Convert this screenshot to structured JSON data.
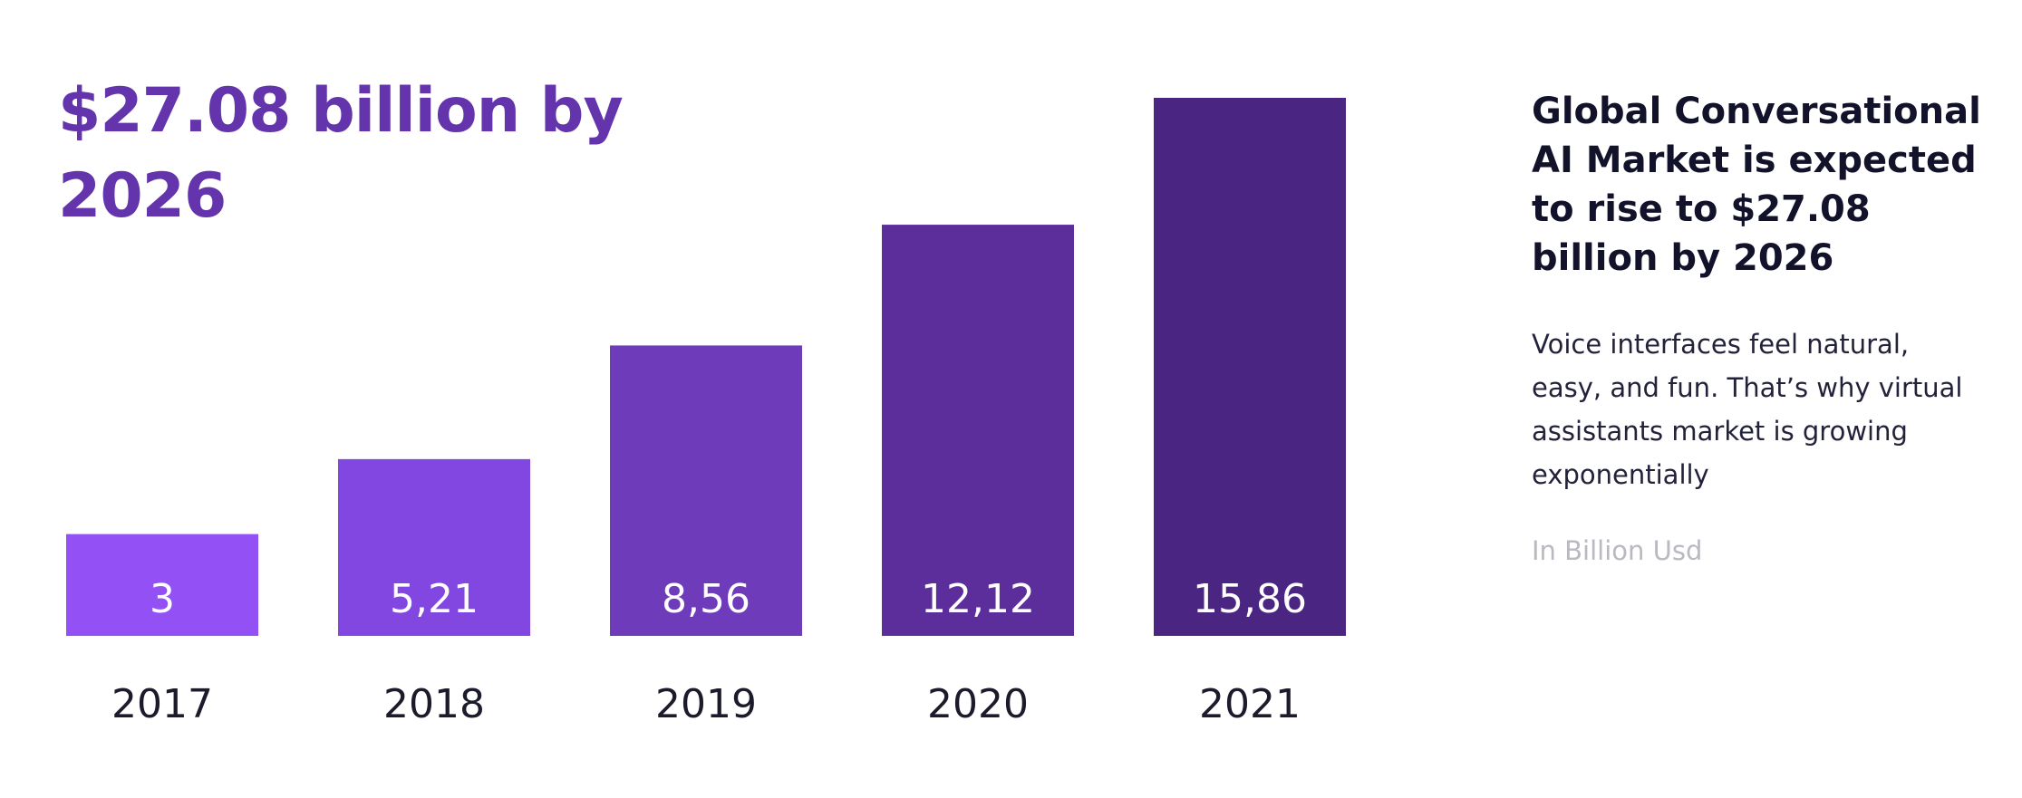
{
  "headline": {
    "text": "$27.08 billion by 2026"
  },
  "side_panel": {
    "title": "Global Conversational AI Market is expected to rise to $27.08 billion by 2026",
    "body": "Voice interfaces feel natural, easy, and fun. That’s why virtual assistants market is growing exponentially",
    "note": "In Billion Usd"
  },
  "colors": {
    "headline": "#6334ac",
    "title": "#12122a",
    "note": "#b9b9c2",
    "bars": [
      "#9351f5",
      "#8147e0",
      "#6e3bba",
      "#5c2e9c",
      "#4b2582"
    ]
  },
  "chart_data": {
    "type": "bar",
    "title": "",
    "xlabel": "",
    "ylabel": "",
    "unit": "In Billion Usd",
    "categories": [
      "2017",
      "2018",
      "2019",
      "2020",
      "2021"
    ],
    "values": [
      3,
      5.21,
      8.56,
      12.12,
      15.86
    ],
    "value_labels": [
      "3",
      "5,21",
      "8,56",
      "12,12",
      "15,86"
    ],
    "ylim": [
      0,
      15.86
    ]
  }
}
